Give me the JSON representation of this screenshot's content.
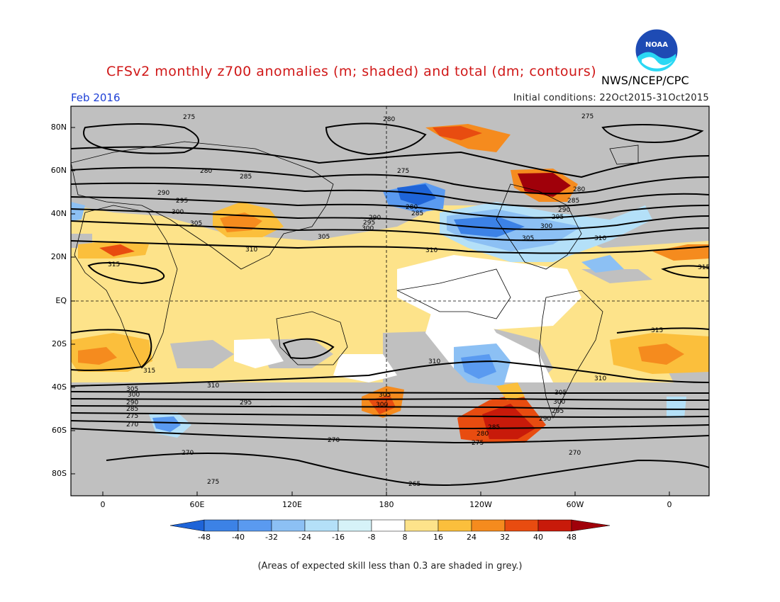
{
  "title": "CFSv2 monthly z700 anomalies (m; shaded) and total (dm; contours)",
  "agency": "NWS/NCEP/CPC",
  "logo_text": "NOAA",
  "valid_month": "Feb 2016",
  "initial_conditions": "Initial conditions: 22Oct2015-31Oct2015",
  "footnote": "(Areas of expected skill less than 0.3 are shaded in grey.)",
  "colors": {
    "grey_mask": "#c0c0c0",
    "land_outline": "#000000",
    "neg48": "#1e64d8",
    "neg40": "#3c82e6",
    "neg32": "#5a9af0",
    "neg24": "#8cc0f4",
    "neg16": "#b4e0f8",
    "neg8": "#ffffff",
    "pos8": "#fde38a",
    "pos16": "#fbbf3c",
    "pos24": "#f58b1e",
    "pos32": "#e84c10",
    "pos40": "#c81a0a",
    "pos48": "#a0000a"
  },
  "lat_labels": [
    "80N",
    "60N",
    "40N",
    "20N",
    "EQ",
    "20S",
    "40S",
    "60S",
    "80S"
  ],
  "lon_labels": [
    "0",
    "60E",
    "120E",
    "180",
    "120W",
    "60W",
    "0"
  ],
  "colorbar_labels": [
    "-48",
    "-40",
    "-32",
    "-24",
    "-16",
    "-8",
    "8",
    "16",
    "24",
    "32",
    "40",
    "48"
  ],
  "contour_labels": [
    "275",
    "280",
    "285",
    "290",
    "295",
    "300",
    "305",
    "310",
    "315",
    "270",
    "265"
  ]
}
